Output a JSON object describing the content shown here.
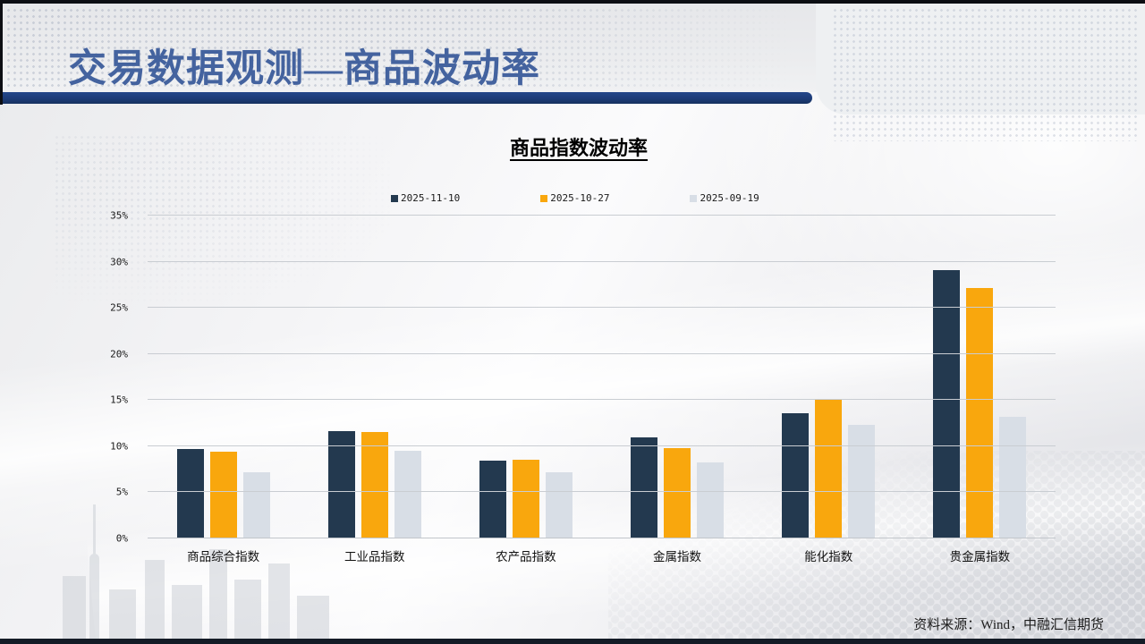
{
  "slide": {
    "title": "交易数据观测—商品波动率",
    "source_note": "资料来源：Wind，中融汇信期货"
  },
  "chart": {
    "title": "商品指数波动率"
  },
  "colors": {
    "accent_bar": "#1d3c78",
    "title_text": "#44639f",
    "gridline": "#c9cdd2",
    "series_1": "#23394f",
    "series_2": "#f9a70d",
    "series_3": "#d8dee6"
  },
  "chart_data": {
    "type": "bar",
    "title": "商品指数波动率",
    "categories": [
      "商品综合指数",
      "工业品指数",
      "农产品指数",
      "金属指数",
      "能化指数",
      "贵金属指数"
    ],
    "series": [
      {
        "name": "2025-11-10",
        "color": "#23394f",
        "values": [
          9.7,
          11.6,
          8.4,
          11.0,
          13.6,
          29.1
        ]
      },
      {
        "name": "2025-10-27",
        "color": "#f9a70d",
        "values": [
          9.4,
          11.5,
          8.5,
          9.8,
          15.1,
          27.1
        ]
      },
      {
        "name": "2025-09-19",
        "color": "#d8dee6",
        "values": [
          7.2,
          9.5,
          7.2,
          8.2,
          12.3,
          13.2
        ]
      }
    ],
    "xlabel": "",
    "ylabel": "",
    "ylim": [
      0,
      35
    ],
    "ytick_step": 5,
    "ytick_suffix": "%",
    "grid": true,
    "legend_position": "top"
  }
}
